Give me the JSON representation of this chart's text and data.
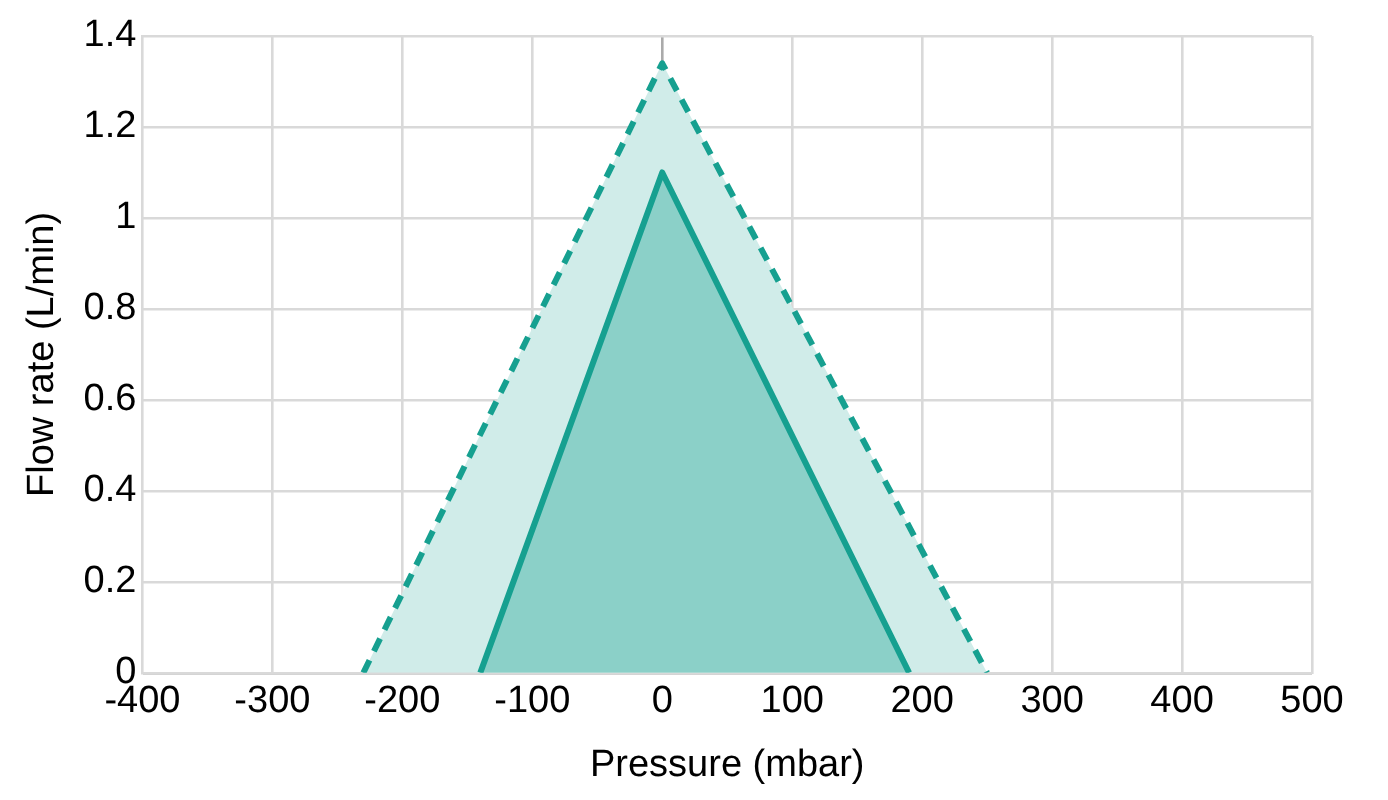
{
  "chart_data": {
    "type": "area",
    "xlabel": "Pressure (mbar)",
    "ylabel": "Flow rate (L/min)",
    "xlim": [
      -400,
      500
    ],
    "xticks": [
      -400,
      -300,
      -200,
      -100,
      0,
      100,
      200,
      300,
      400,
      500
    ],
    "ylim": [
      0,
      1.4
    ],
    "yticks": [
      0,
      0.2,
      0.4,
      0.6,
      0.8,
      1,
      1.2,
      1.4
    ],
    "grid": true,
    "legend": false,
    "series": [
      {
        "color": "#16a090",
        "x": [
          -230,
          0,
          250
        ],
        "values": [
          0,
          1.34,
          0
        ],
        "line_style": "dashed"
      },
      {
        "color": "#16a090",
        "x": [
          -140,
          0,
          190
        ],
        "values": [
          0,
          1.1,
          0
        ],
        "line_style": "solid"
      }
    ]
  }
}
